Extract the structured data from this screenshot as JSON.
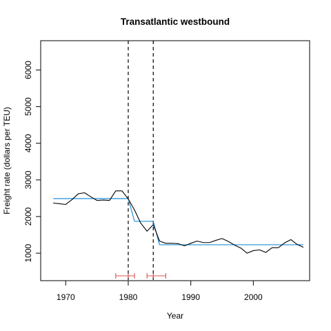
{
  "chart_data": {
    "type": "line",
    "title": "Transatlantic westbound",
    "xlabel": "Year",
    "ylabel": "Freight rate (dollars per TEU)",
    "xlim": [
      1966,
      2009
    ],
    "ylim": [
      250,
      6800
    ],
    "x_ticks": [
      1970,
      1980,
      1990,
      2000
    ],
    "y_ticks": [
      1000,
      2000,
      3000,
      4000,
      5000,
      6000
    ],
    "grid": false,
    "series": [
      {
        "name": "Freight rate",
        "color": "#000000",
        "x": [
          1968,
          1969,
          1970,
          1971,
          1972,
          1973,
          1974,
          1975,
          1976,
          1977,
          1978,
          1979,
          1980,
          1981,
          1982,
          1983,
          1984,
          1985,
          1986,
          1987,
          1988,
          1989,
          1990,
          1991,
          1992,
          1993,
          1994,
          1995,
          1996,
          1997,
          1998,
          1999,
          2000,
          2001,
          2002,
          2003,
          2004,
          2005,
          2006,
          2007,
          2008
        ],
        "values": [
          2370,
          2350,
          2330,
          2460,
          2620,
          2650,
          2540,
          2440,
          2450,
          2440,
          2700,
          2700,
          2480,
          2180,
          1820,
          1600,
          1780,
          1330,
          1270,
          1270,
          1260,
          1200,
          1270,
          1330,
          1290,
          1290,
          1350,
          1400,
          1320,
          1220,
          1140,
          1000,
          1070,
          1090,
          1020,
          1150,
          1150,
          1280,
          1370,
          1240,
          1160
        ]
      },
      {
        "name": "Fitted segments",
        "color": "#1f8fd6",
        "segments": [
          {
            "x": [
              1968,
              1980
            ],
            "values": [
              2490,
              2490
            ]
          },
          {
            "x": [
              1980,
              1981
            ],
            "values": [
              2490,
              1870
            ]
          },
          {
            "x": [
              1981,
              1984
            ],
            "values": [
              1870,
              1870
            ]
          },
          {
            "x": [
              1984,
              1985
            ],
            "values": [
              1870,
              1230
            ]
          },
          {
            "x": [
              1985,
              2008
            ],
            "values": [
              1230,
              1230
            ]
          }
        ]
      }
    ],
    "breakpoints": [
      {
        "year": 1980,
        "ci": [
          1978,
          1981
        ]
      },
      {
        "year": 1984,
        "ci": [
          1983,
          1986
        ]
      }
    ],
    "ci_color": "#d9534f"
  }
}
